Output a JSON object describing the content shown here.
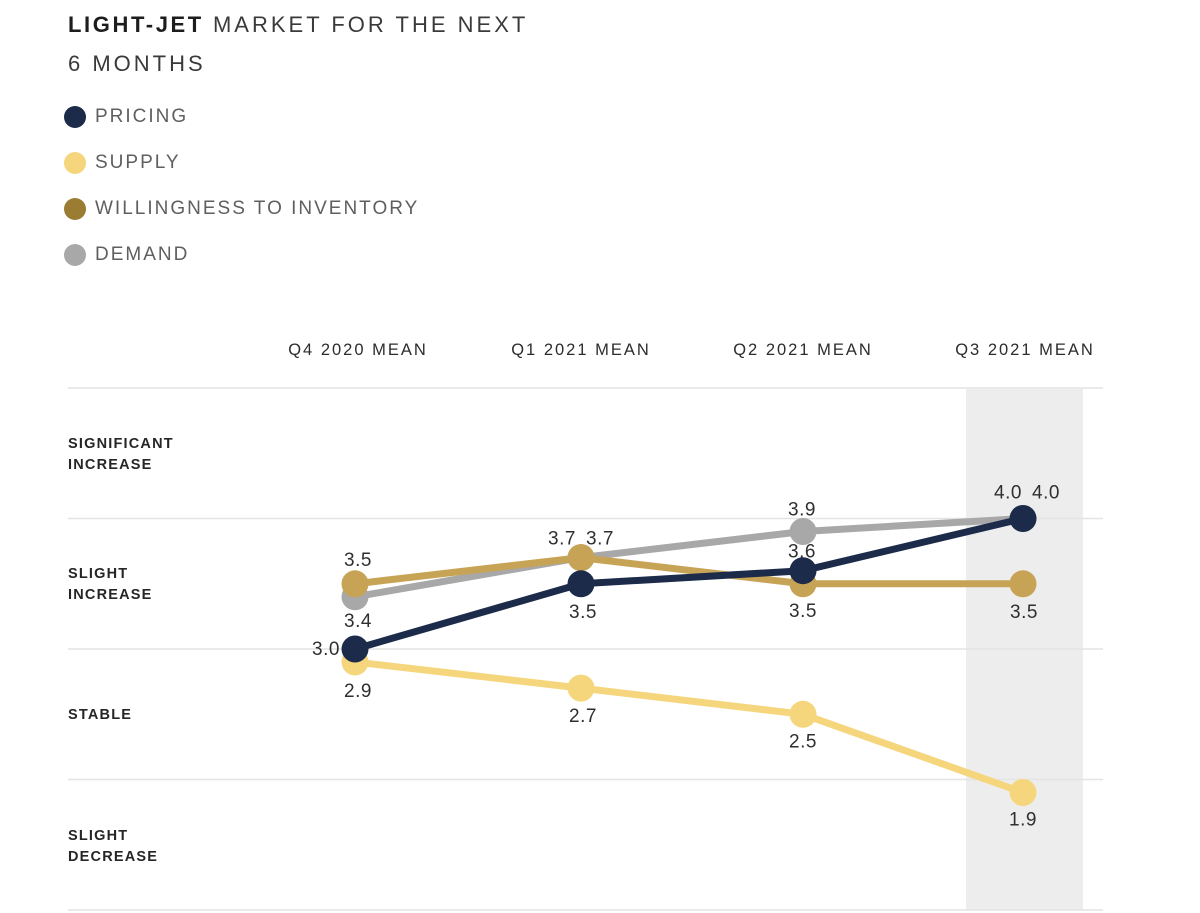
{
  "title": {
    "brand": "LIGHT-JET",
    "rest": " MARKET FOR THE NEXT",
    "line2": "6 MONTHS"
  },
  "legend": {
    "items": [
      {
        "label": "PRICING",
        "color": "#1c2b4a"
      },
      {
        "label": "SUPPLY",
        "color": "#f6d67d"
      },
      {
        "label": "WILLINGNESS TO INVENTORY",
        "color": "#9a7c33"
      },
      {
        "label": "DEMAND",
        "color": "#a8a8a8"
      }
    ]
  },
  "chart_data": {
    "type": "line",
    "title": "LIGHT-JET MARKET FOR THE NEXT 6 MONTHS",
    "categories": [
      "Q4 2020 MEAN",
      "Q1 2021 MEAN",
      "Q2 2021 MEAN",
      "Q3 2021 MEAN"
    ],
    "y_axis_bands": [
      [
        "SIGNIFICANT",
        "INCREASE"
      ],
      [
        "SLIGHT",
        "INCREASE"
      ],
      [
        "STABLE"
      ],
      [
        "SLIGHT",
        "DECREASE"
      ]
    ],
    "ylim": [
      1,
      5
    ],
    "gridline_values": [
      5,
      4,
      3,
      2,
      1
    ],
    "grid": "horizontal-only",
    "legend_position": "top-left",
    "highlighted_category": "Q3 2021 MEAN",
    "highlight_color": "#ededed",
    "gridline_color": "#e4e4e4",
    "series": [
      {
        "name": "DEMAND",
        "color": "#a8a8a8",
        "values": [
          3.4,
          3.7,
          3.9,
          4.0
        ],
        "labels": [
          "3.4",
          "3.7",
          "3.9",
          "4.0"
        ],
        "label_offsets": [
          [
            3,
            30
          ],
          [
            -19,
            -13
          ],
          [
            -1,
            -16
          ],
          [
            -15,
            -20
          ]
        ]
      },
      {
        "name": "SUPPLY",
        "color": "#f6d67d",
        "values": [
          2.9,
          2.7,
          2.5,
          1.9
        ],
        "labels": [
          "2.9",
          "2.7",
          "2.5",
          "1.9"
        ],
        "label_offsets": [
          [
            3,
            35
          ],
          [
            2,
            34
          ],
          [
            0,
            33
          ],
          [
            0,
            33
          ]
        ]
      },
      {
        "name": "WILLINGNESS TO INVENTORY",
        "color": "#c7a355",
        "values": [
          3.5,
          3.7,
          3.5,
          3.5
        ],
        "labels": [
          "3.5",
          "3.7",
          "3.5",
          "3.5"
        ],
        "label_offsets": [
          [
            3,
            -18
          ],
          [
            19,
            -13
          ],
          [
            0,
            33
          ],
          [
            1,
            34
          ]
        ]
      },
      {
        "name": "PRICING",
        "color": "#1c2b4a",
        "values": [
          3.0,
          3.5,
          3.6,
          4.0
        ],
        "labels": [
          "3.0",
          "3.5",
          "3.6",
          "4.0"
        ],
        "label_offsets": [
          [
            -29,
            6
          ],
          [
            2,
            34
          ],
          [
            -1,
            -13
          ],
          [
            23,
            -20
          ]
        ]
      }
    ]
  }
}
